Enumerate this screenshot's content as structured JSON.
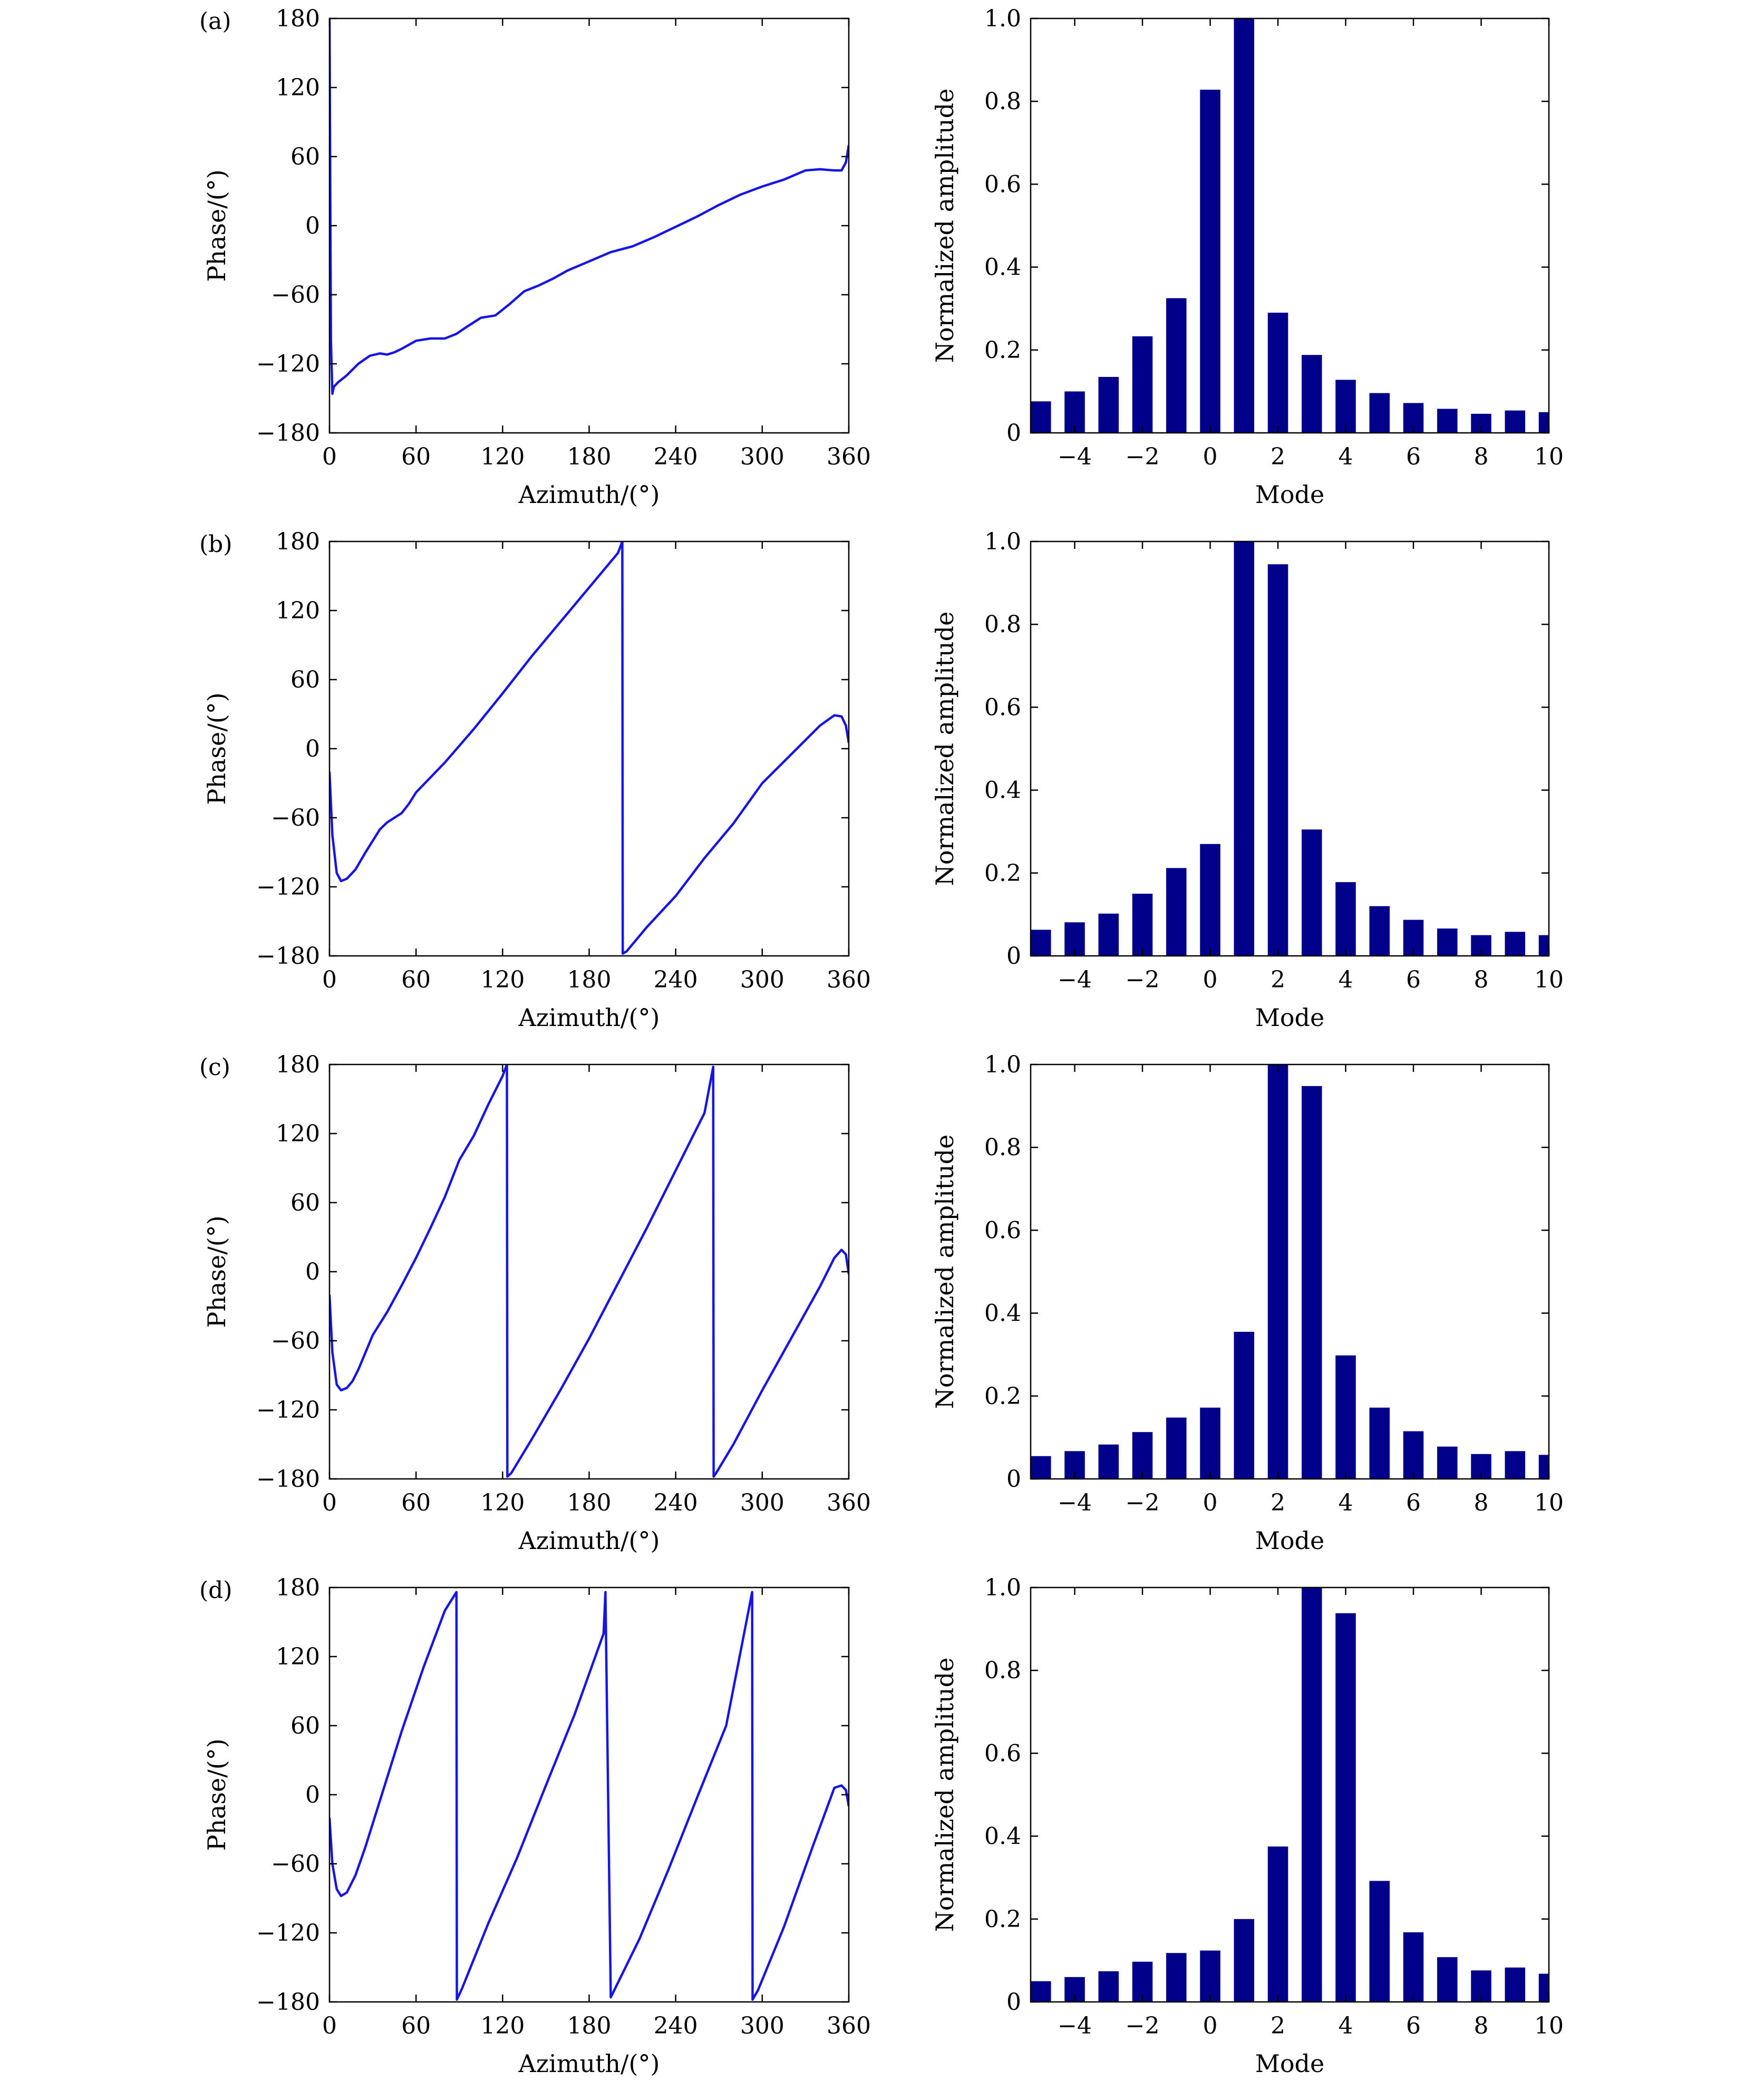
{
  "colors": {
    "line": "#1515e8",
    "bar": "#00008b",
    "axis": "#000000"
  },
  "chart_data": [
    {
      "panel": "(a)",
      "type": "line",
      "xlabel": "Azimuth/(°)",
      "ylabel": "Phase/(°)",
      "xlim": [
        0,
        360
      ],
      "ylim": [
        -180,
        180
      ],
      "xticks": [
        0,
        60,
        120,
        180,
        240,
        300,
        360
      ],
      "yticks": [
        -180,
        -120,
        -60,
        0,
        60,
        120,
        180
      ],
      "series": [
        {
          "name": "phase",
          "x": [
            0,
            1,
            2,
            3,
            6,
            12,
            20,
            28,
            35,
            40,
            45,
            50,
            60,
            70,
            80,
            88,
            95,
            105,
            115,
            125,
            135,
            145,
            155,
            165,
            180,
            195,
            210,
            225,
            240,
            255,
            270,
            285,
            300,
            315,
            330,
            340,
            350,
            355,
            358,
            360
          ],
          "y": [
            180,
            -100,
            -146,
            -140,
            -136,
            -130,
            -120,
            -113,
            -111,
            -112,
            -110,
            -107,
            -100,
            -98,
            -98,
            -94,
            -88,
            -80,
            -78,
            -68,
            -57,
            -52,
            -46,
            -39,
            -31,
            -23,
            -18,
            -10,
            -1,
            8,
            18,
            27,
            34,
            40,
            48,
            49,
            48,
            48,
            55,
            70
          ]
        }
      ]
    },
    {
      "panel": "(a)",
      "type": "bar",
      "xlabel": "Mode",
      "ylabel": "Normalized amplitude",
      "xlim": [
        -5.3,
        10
      ],
      "ylim": [
        0,
        1
      ],
      "xticks": [
        -4,
        -2,
        0,
        2,
        4,
        6,
        8,
        10
      ],
      "yticks": [
        0,
        0.2,
        0.4,
        0.6,
        0.8,
        1.0
      ],
      "categories": [
        -5,
        -4,
        -3,
        -2,
        -1,
        0,
        1,
        2,
        3,
        4,
        5,
        6,
        7,
        8,
        9,
        10
      ],
      "values": [
        0.076,
        0.1,
        0.135,
        0.233,
        0.325,
        0.828,
        1.0,
        0.29,
        0.188,
        0.128,
        0.096,
        0.072,
        0.058,
        0.046,
        0.054,
        0.05
      ]
    },
    {
      "panel": "(b)",
      "type": "line",
      "xlabel": "Azimuth/(°)",
      "ylabel": "Phase/(°)",
      "xlim": [
        0,
        360
      ],
      "ylim": [
        -180,
        180
      ],
      "xticks": [
        0,
        60,
        120,
        180,
        240,
        300,
        360
      ],
      "yticks": [
        -180,
        -120,
        -60,
        0,
        60,
        120,
        180
      ],
      "series": [
        {
          "name": "phase",
          "x": [
            0,
            2,
            5,
            8,
            12,
            18,
            25,
            30,
            35,
            40,
            45,
            50,
            55,
            60,
            70,
            80,
            100,
            120,
            140,
            160,
            180,
            190,
            200,
            203,
            203.3,
            206,
            220,
            240,
            260,
            280,
            300,
            320,
            340,
            350,
            355,
            358,
            360
          ],
          "y": [
            -20,
            -75,
            -108,
            -115,
            -113,
            -105,
            -90,
            -80,
            -70,
            -64,
            -60,
            -56,
            -48,
            -38,
            -25,
            -12,
            17,
            48,
            80,
            110,
            140,
            155,
            170,
            180,
            -178,
            -176,
            -155,
            -128,
            -95,
            -65,
            -30,
            -5,
            20,
            29,
            28,
            20,
            5
          ]
        }
      ]
    },
    {
      "panel": "(b)",
      "type": "bar",
      "xlabel": "Mode",
      "ylabel": "Normalized amplitude",
      "xlim": [
        -5.3,
        10
      ],
      "ylim": [
        0,
        1
      ],
      "xticks": [
        -4,
        -2,
        0,
        2,
        4,
        6,
        8,
        10
      ],
      "yticks": [
        0,
        0.2,
        0.4,
        0.6,
        0.8,
        1.0
      ],
      "categories": [
        -5,
        -4,
        -3,
        -2,
        -1,
        0,
        1,
        2,
        3,
        4,
        5,
        6,
        7,
        8,
        9,
        10
      ],
      "values": [
        0.063,
        0.081,
        0.102,
        0.15,
        0.212,
        0.27,
        1.0,
        0.945,
        0.305,
        0.178,
        0.12,
        0.087,
        0.066,
        0.05,
        0.058,
        0.05
      ]
    },
    {
      "panel": "(c)",
      "type": "line",
      "xlabel": "Azimuth/(°)",
      "ylabel": "Phase/(°)",
      "xlim": [
        0,
        360
      ],
      "ylim": [
        -180,
        180
      ],
      "xticks": [
        0,
        60,
        120,
        180,
        240,
        300,
        360
      ],
      "yticks": [
        -180,
        -120,
        -60,
        0,
        60,
        120,
        180
      ],
      "series": [
        {
          "name": "phase",
          "x": [
            0,
            2,
            5,
            8,
            12,
            16,
            20,
            25,
            30,
            40,
            50,
            60,
            70,
            80,
            90,
            100,
            110,
            120,
            123,
            123.3,
            126,
            140,
            160,
            180,
            200,
            220,
            240,
            260,
            266,
            266.3,
            268,
            280,
            300,
            320,
            340,
            350,
            355,
            358,
            360
          ],
          "y": [
            -20,
            -70,
            -98,
            -103,
            -101,
            -95,
            -85,
            -70,
            -55,
            -35,
            -12,
            12,
            38,
            65,
            97,
            118,
            145,
            170,
            180,
            -178,
            -175,
            -146,
            -103,
            -58,
            -10,
            38,
            88,
            138,
            178,
            -178,
            -175,
            -150,
            -103,
            -58,
            -13,
            12,
            19,
            15,
            -2
          ]
        }
      ]
    },
    {
      "panel": "(c)",
      "type": "bar",
      "xlabel": "Mode",
      "ylabel": "Normalized amplitude",
      "xlim": [
        -5.3,
        10
      ],
      "ylim": [
        0,
        1
      ],
      "xticks": [
        -4,
        -2,
        0,
        2,
        4,
        6,
        8,
        10
      ],
      "yticks": [
        0,
        0.2,
        0.4,
        0.6,
        0.8,
        1.0
      ],
      "categories": [
        -5,
        -4,
        -3,
        -2,
        -1,
        0,
        1,
        2,
        3,
        4,
        5,
        6,
        7,
        8,
        9,
        10
      ],
      "values": [
        0.055,
        0.067,
        0.083,
        0.113,
        0.148,
        0.172,
        0.355,
        1.0,
        0.948,
        0.298,
        0.172,
        0.115,
        0.078,
        0.06,
        0.067,
        0.058
      ]
    },
    {
      "panel": "(d)",
      "type": "line",
      "xlabel": "Azimuth/(°)",
      "ylabel": "Phase/(°)",
      "xlim": [
        0,
        360
      ],
      "ylim": [
        -180,
        180
      ],
      "xticks": [
        0,
        60,
        120,
        180,
        240,
        300,
        360
      ],
      "yticks": [
        -180,
        -120,
        -60,
        0,
        60,
        120,
        180
      ],
      "series": [
        {
          "name": "phase",
          "x": [
            0,
            2,
            5,
            8,
            12,
            18,
            25,
            35,
            50,
            65,
            80,
            88,
            88.3,
            92,
            110,
            130,
            150,
            170,
            190,
            191.3,
            195,
            215,
            235,
            255,
            275,
            293,
            293.3,
            297,
            315,
            335,
            350,
            355,
            358,
            360
          ],
          "y": [
            -20,
            -60,
            -82,
            -88,
            -85,
            -70,
            -45,
            -5,
            55,
            110,
            160,
            176,
            -178,
            -168,
            -112,
            -55,
            8,
            70,
            140,
            176,
            -176,
            -125,
            -65,
            -2,
            60,
            176,
            -178,
            -170,
            -115,
            -45,
            6,
            8,
            4,
            -10
          ]
        }
      ]
    },
    {
      "panel": "(d)",
      "type": "bar",
      "xlabel": "Mode",
      "ylabel": "Normalized amplitude",
      "xlim": [
        -5.3,
        10
      ],
      "ylim": [
        0,
        1
      ],
      "xticks": [
        -4,
        -2,
        0,
        2,
        4,
        6,
        8,
        10
      ],
      "yticks": [
        0,
        0.2,
        0.4,
        0.6,
        0.8,
        1.0
      ],
      "categories": [
        -5,
        -4,
        -3,
        -2,
        -1,
        0,
        1,
        2,
        3,
        4,
        5,
        6,
        7,
        8,
        9,
        10
      ],
      "values": [
        0.05,
        0.06,
        0.074,
        0.097,
        0.118,
        0.124,
        0.2,
        0.375,
        1.0,
        0.938,
        0.292,
        0.168,
        0.108,
        0.076,
        0.083,
        0.068
      ]
    }
  ]
}
